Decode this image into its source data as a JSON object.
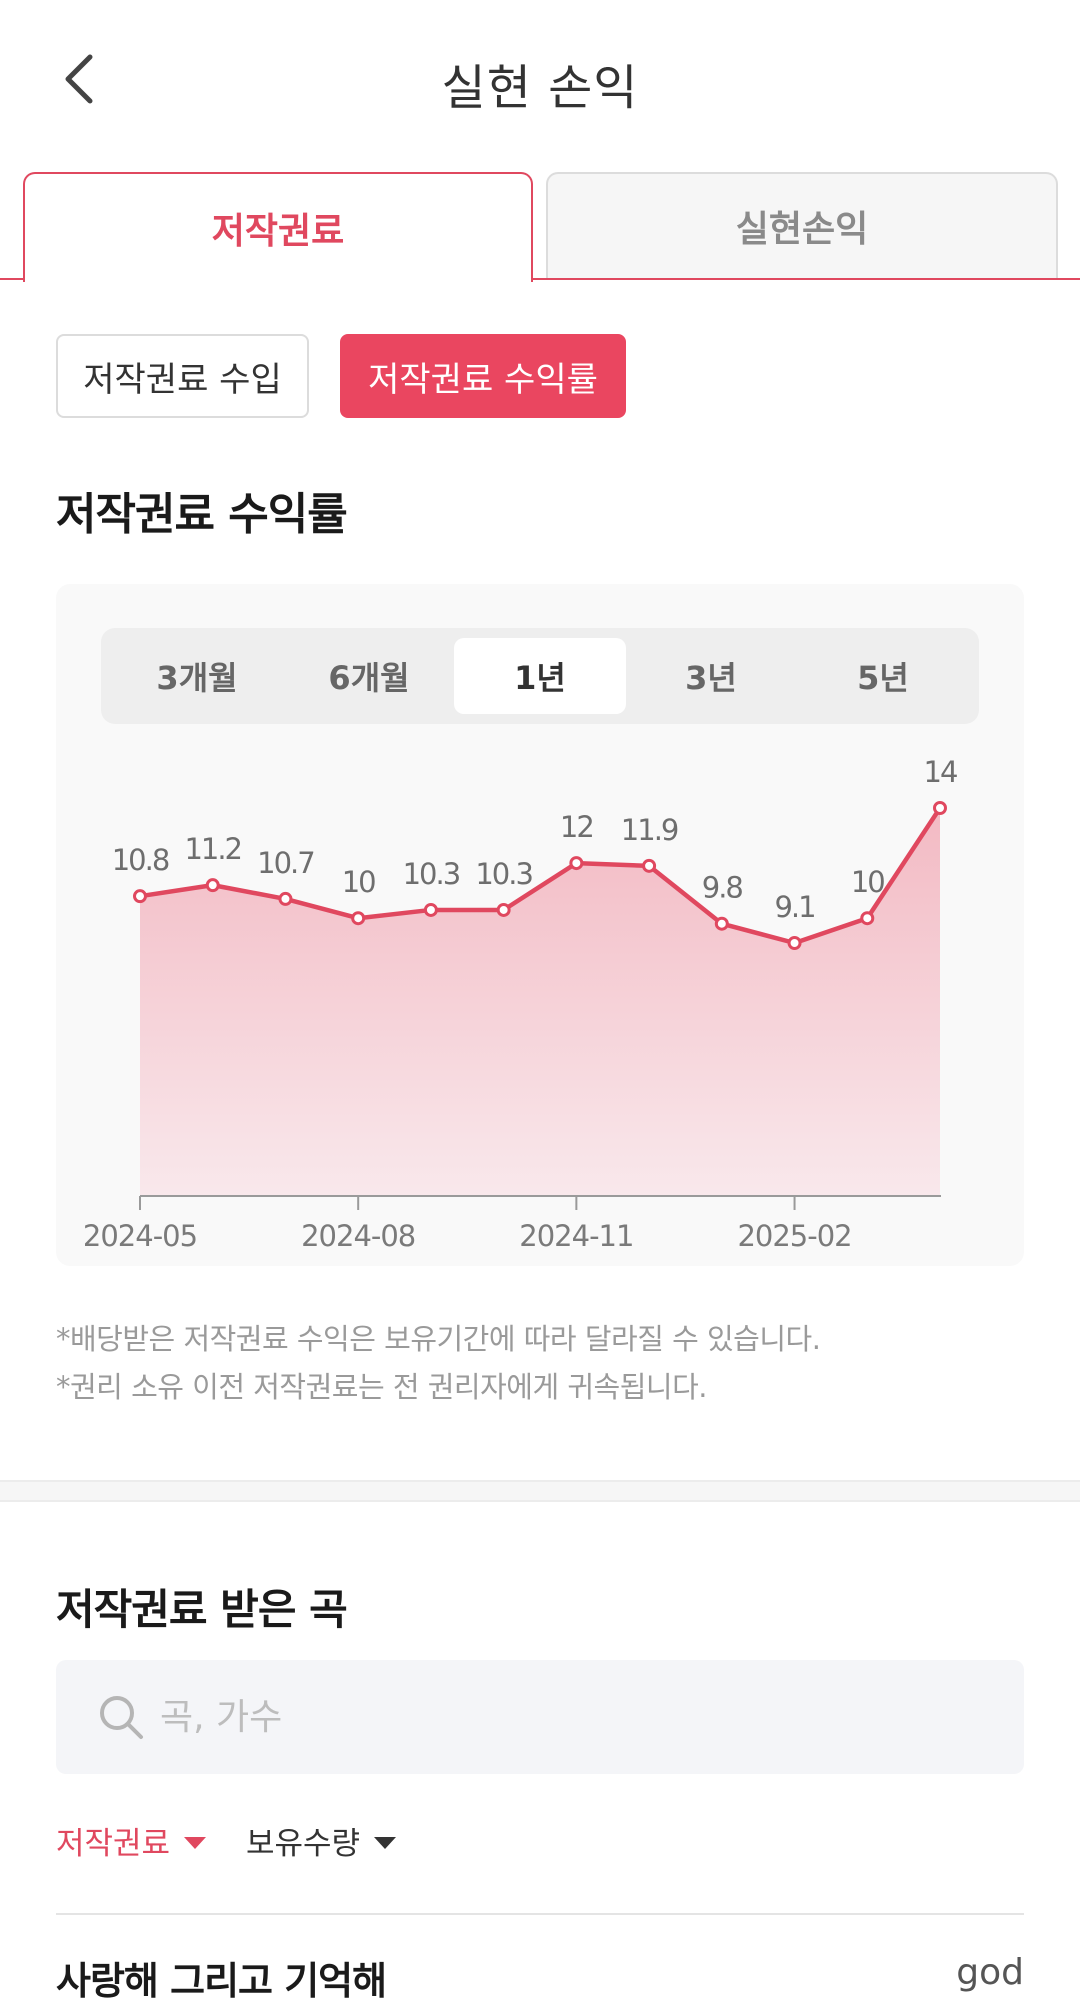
{
  "header": {
    "title": "실현 손익"
  },
  "tabs": [
    {
      "label": "저작권료",
      "active": true
    },
    {
      "label": "실현손익",
      "active": false
    }
  ],
  "segments": [
    {
      "label": "저작권료 수입",
      "active": false
    },
    {
      "label": "저작권료 수익률",
      "active": true
    }
  ],
  "chart_section": {
    "title": "저작권료 수익률"
  },
  "periods": [
    {
      "label": "3개월",
      "selected": false
    },
    {
      "label": "6개월",
      "selected": false
    },
    {
      "label": "1년",
      "selected": true
    },
    {
      "label": "3년",
      "selected": false
    },
    {
      "label": "5년",
      "selected": false
    }
  ],
  "chart_data": {
    "type": "area",
    "title": "",
    "xlabel": "",
    "ylabel": "",
    "x_tick_labels": [
      "2024-05",
      "2024-08",
      "2024-11",
      "2025-02"
    ],
    "x_tick_indices": [
      0,
      3,
      6,
      9
    ],
    "values": [
      10.8,
      11.2,
      10.7,
      10,
      10.3,
      10.3,
      12,
      11.9,
      9.8,
      9.1,
      10,
      14
    ],
    "value_labels": [
      "10.8",
      "11.2",
      "10.7",
      "10",
      "10.3",
      "10.3",
      "12",
      "11.9",
      "9.8",
      "9.1",
      "10",
      "14"
    ],
    "line_color": "#e0485f",
    "fill_color_top": "#f2b6c0",
    "grid": false
  },
  "notes": [
    "*배당받은 저작권료 수익은 보유기간에 따라 달라질 수 있습니다.",
    "*권리 소유 이전 저작권료는 전 권리자에게 귀속됩니다."
  ],
  "songs_section": {
    "title": "저작권료 받은 곡",
    "search_placeholder": "곡, 가수",
    "search_value": "",
    "filters": [
      {
        "label": "저작권료",
        "color": "#e0485f"
      },
      {
        "label": "보유수량",
        "color": "#333333"
      }
    ],
    "items": [
      {
        "title": "사랑해 그리고 기억해",
        "artist": "god"
      }
    ]
  },
  "icons": {
    "back": "chevron-left-icon",
    "search": "search-icon",
    "dropdown": "caret-down-icon"
  },
  "colors": {
    "accent": "#e0485f",
    "accent_button": "#ea4660"
  }
}
